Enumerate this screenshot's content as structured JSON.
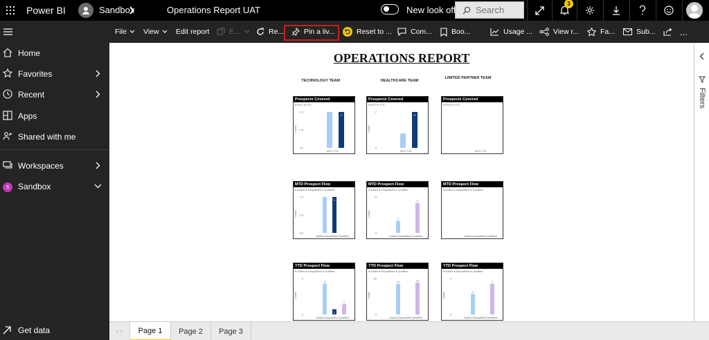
{
  "header": {
    "brand": "Power BI",
    "workspace": "Sandbox",
    "report_title": "Operations Report UAT",
    "new_look_label": "New look off",
    "search_placeholder": "Search",
    "notification_count": "3"
  },
  "toolbar": {
    "file": "File",
    "view": "View",
    "edit_report": "Edit report",
    "edit_disabled": "E...",
    "refresh": "Re...",
    "pin_live": "Pin a liv...",
    "reset": "Reset to ...",
    "comments": "Com...",
    "bookmarks": "Boo...",
    "usage": "Usage ...",
    "view_related": "View r...",
    "favorite": "Fa...",
    "subscribe": "Sub...",
    "more": "..."
  },
  "sidebar": {
    "items": [
      {
        "label": "Home"
      },
      {
        "label": "Favorites"
      },
      {
        "label": "Recent"
      },
      {
        "label": "Apps"
      },
      {
        "label": "Shared with me"
      },
      {
        "label": "Workspaces"
      },
      {
        "label": "Sandbox",
        "avatar": "S"
      }
    ],
    "get_data": "Get data"
  },
  "report": {
    "title": "OPERATIONS REPORT",
    "columns": [
      "TECHNOLOGY TEAM",
      "HEALTHCARE TEAM",
      "LIMITED PARTNER TEAM"
    ],
    "cards": [
      {
        "title": "Prospects Covered",
        "legend": "● MTD  ● YTD",
        "xaxis": "MTD YTD",
        "yticks": [
          "1.0",
          "0.5",
          "0.0"
        ],
        "ylabel": "Count"
      },
      {
        "title": "Prospects Covered",
        "legend": "● MTD  ● YTD",
        "xaxis": "MTD YTD",
        "yticks": [
          "2",
          "0"
        ],
        "ylabel": "Count"
      },
      {
        "title": "Prospects Covered",
        "legend": "● MTD  ● YTD",
        "xaxis": "MTD YTD",
        "yticks": [],
        "ylabel": ""
      },
      {
        "title": "MTD Prospect Flow",
        "legend": "● Added  ● Disqualified  ● Qualified",
        "xaxis": "Added Disqualified Qualified",
        "yticks": [
          "1.0",
          "0.5",
          "0.0"
        ],
        "ylabel": "Count"
      },
      {
        "title": "MTD Prospect Flow",
        "legend": "● Added  ● Disqualified  ● Qualified",
        "xaxis": "Added Disqualified Qualified",
        "yticks": [
          "5",
          "0"
        ],
        "ylabel": "Count"
      },
      {
        "title": "MTD Prospect Flow",
        "legend": "● Added  ● Disqualified  ● Qualified",
        "xaxis": "Added Disqualified Qualified",
        "yticks": [],
        "ylabel": ""
      },
      {
        "title": "YTD Prospect Flow",
        "legend": "● Added  ● Disqualified  ● Qualified",
        "xaxis": "Added Disqualified Qualified",
        "yticks": [
          "5",
          "0"
        ],
        "ylabel": "Count"
      },
      {
        "title": "YTD Prospect Flow",
        "legend": "● Added  ● Disqualified  ● Qualified",
        "xaxis": "Added Disqualified Qualified",
        "yticks": [
          "20",
          "0"
        ],
        "ylabel": "Count"
      },
      {
        "title": "YTD Prospect Flow",
        "legend": "● Added  ● Disqualified  ● Qualified",
        "xaxis": "Added Disqualified Qualified",
        "yticks": [
          "2",
          "0"
        ],
        "ylabel": "Count"
      }
    ]
  },
  "chart_data": [
    {
      "type": "bar",
      "title": "Prospects Covered",
      "categories": [
        "MTD",
        "YTD"
      ],
      "values": [
        1,
        1
      ],
      "ylim": [
        0,
        1
      ],
      "ylabel": "Count",
      "colors": [
        "#a9cef4",
        "#0e3a78"
      ],
      "data_labels": [
        "",
        "1"
      ]
    },
    {
      "type": "bar",
      "title": "Prospects Covered",
      "categories": [
        "MTD",
        "YTD"
      ],
      "values": [
        2,
        5
      ],
      "ylim": [
        0,
        5
      ],
      "ylabel": "Count",
      "colors": [
        "#a9cef4",
        "#0e3a78"
      ],
      "data_labels": [
        "",
        "5"
      ]
    },
    {
      "type": "bar",
      "title": "Prospects Covered",
      "categories": [
        "MTD",
        "YTD"
      ],
      "values": [
        0,
        0
      ],
      "ylim": [
        0,
        1
      ],
      "ylabel": "",
      "colors": [
        "#a9cef4",
        "#0e3a78"
      ],
      "data_labels": [
        "",
        ""
      ]
    },
    {
      "type": "bar",
      "title": "MTD Prospect Flow",
      "categories": [
        "Added",
        "Disqualified",
        "Qualified"
      ],
      "values": [
        1,
        1,
        0
      ],
      "ylim": [
        0,
        1
      ],
      "ylabel": "Count",
      "colors": [
        "#a9cef4",
        "#0e3a78",
        "#cdb6e8"
      ],
      "data_labels": [
        "",
        "1",
        ""
      ]
    },
    {
      "type": "bar",
      "title": "MTD Prospect Flow",
      "categories": [
        "Added",
        "Disqualified",
        "Qualified"
      ],
      "values": [
        2,
        0,
        5
      ],
      "ylim": [
        0,
        6
      ],
      "ylabel": "Count",
      "colors": [
        "#a9cef4",
        "#0e3a78",
        "#cdb6e8"
      ],
      "data_labels": [
        "2",
        "",
        "5"
      ]
    },
    {
      "type": "bar",
      "title": "MTD Prospect Flow",
      "categories": [
        "Added",
        "Disqualified",
        "Qualified"
      ],
      "values": [
        0,
        0,
        0
      ],
      "ylim": [
        0,
        1
      ],
      "ylabel": "",
      "colors": [
        "#a9cef4",
        "#0e3a78",
        "#cdb6e8"
      ],
      "data_labels": [
        "",
        "",
        ""
      ]
    },
    {
      "type": "bar",
      "title": "YTD Prospect Flow",
      "categories": [
        "Added",
        "Disqualified",
        "Qualified"
      ],
      "values": [
        6,
        1,
        2
      ],
      "ylim": [
        0,
        7
      ],
      "ylabel": "Count",
      "colors": [
        "#a9cef4",
        "#0e3a78",
        "#cdb6e8"
      ],
      "data_labels": [
        "6",
        "1",
        "2"
      ]
    },
    {
      "type": "bar",
      "title": "YTD Prospect Flow",
      "categories": [
        "Added",
        "Disqualified",
        "Qualified"
      ],
      "values": [
        22,
        0,
        23
      ],
      "ylim": [
        0,
        26
      ],
      "ylabel": "Count",
      "colors": [
        "#a9cef4",
        "#0e3a78",
        "#cdb6e8"
      ],
      "data_labels": [
        "22",
        "",
        "23"
      ]
    },
    {
      "type": "bar",
      "title": "YTD Prospect Flow",
      "categories": [
        "Added",
        "Disqualified",
        "Qualified"
      ],
      "values": [
        2,
        0,
        3
      ],
      "ylim": [
        0,
        3.5
      ],
      "ylabel": "Count",
      "colors": [
        "#a9cef4",
        "#0e3a78",
        "#cdb6e8"
      ],
      "data_labels": [
        "2",
        "",
        "3"
      ]
    }
  ],
  "filters_label": "Filters",
  "pages": [
    "Page 1",
    "Page 2",
    "Page 3"
  ]
}
